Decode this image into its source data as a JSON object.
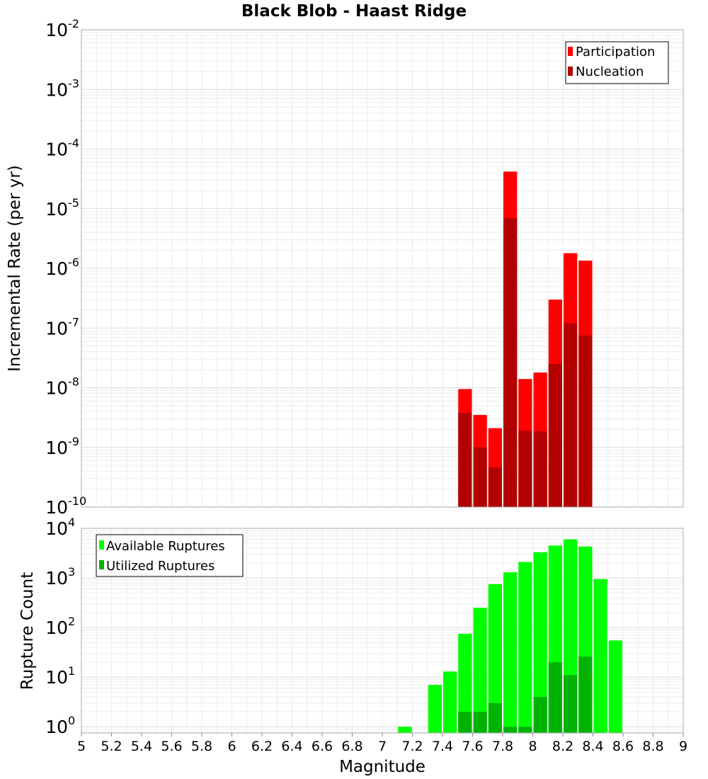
{
  "chart_data": [
    {
      "type": "bar",
      "title": "Black Blob - Haast Ridge",
      "xlabel": "",
      "ylabel": "Incremental Rate (per yr)",
      "yscale": "log",
      "ylim": [
        1e-10,
        0.01
      ],
      "xlim": [
        5,
        9
      ],
      "grid": true,
      "legend_position": "top-right",
      "x": [
        7.55,
        7.65,
        7.75,
        7.85,
        7.95,
        8.05,
        8.15,
        8.25,
        8.35
      ],
      "series": [
        {
          "name": "Participation",
          "color": "#ff0000",
          "values": [
            9.5e-09,
            3.5e-09,
            2.1e-09,
            4.2e-05,
            1.4e-08,
            1.8e-08,
            3e-07,
            1.8e-06,
            1.35e-06
          ]
        },
        {
          "name": "Nucleation",
          "color": "#b30000",
          "values": [
            3.8e-09,
            1e-09,
            4.6e-10,
            7e-06,
            1.9e-09,
            1.85e-09,
            2.5e-08,
            1.2e-07,
            7.5e-08
          ]
        }
      ]
    },
    {
      "type": "bar",
      "title": "",
      "xlabel": "Magnitude",
      "ylabel": "Rupture Count",
      "yscale": "log",
      "ylim": [
        0.75,
        10000
      ],
      "xlim": [
        5,
        9
      ],
      "grid": true,
      "legend_position": "top-left",
      "x_ticks": [
        "5",
        "5.2",
        "5.4",
        "5.6",
        "5.8",
        "6",
        "6.2",
        "6.4",
        "6.6",
        "6.8",
        "7",
        "7.2",
        "7.4",
        "7.6",
        "7.8",
        "8",
        "8.2",
        "8.4",
        "8.6",
        "8.8",
        "9"
      ],
      "x": [
        7.15,
        7.35,
        7.45,
        7.55,
        7.65,
        7.75,
        7.85,
        7.95,
        8.05,
        8.15,
        8.25,
        8.35,
        8.45,
        8.55
      ],
      "series": [
        {
          "name": "Available Ruptures",
          "color": "#00ff00",
          "values": [
            1,
            7,
            13,
            75,
            250,
            750,
            1300,
            2100,
            3300,
            4500,
            6000,
            4300,
            950,
            55
          ]
        },
        {
          "name": "Utilized Ruptures",
          "color": "#00b300",
          "values": [
            0,
            0,
            0,
            2,
            2,
            3,
            1,
            1,
            4,
            20,
            11,
            26,
            0,
            0
          ]
        }
      ]
    }
  ]
}
